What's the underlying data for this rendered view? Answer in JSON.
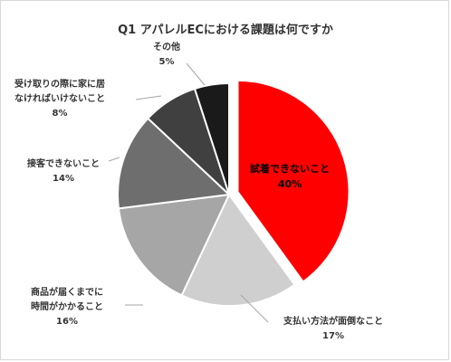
{
  "chart_data": {
    "type": "pie",
    "title": "Q1 アパレルECにおける課題は何ですか",
    "slices": [
      {
        "label_lines": [
          "試着できないこと"
        ],
        "value": 40,
        "value_label": "40%",
        "color": "#ff0000",
        "exploded": true
      },
      {
        "label_lines": [
          "支払い方法が面倒なこと"
        ],
        "value": 17,
        "value_label": "17%",
        "color": "#d0cfcf"
      },
      {
        "label_lines": [
          "商品が届くまでに",
          "時間がかかること"
        ],
        "value": 16,
        "value_label": "16%",
        "color": "#a6a6a6"
      },
      {
        "label_lines": [
          "接客できないこと"
        ],
        "value": 14,
        "value_label": "14%",
        "color": "#6e6e6e"
      },
      {
        "label_lines": [
          "受け取りの際に家に居",
          "なければいけないこと"
        ],
        "value": 8,
        "value_label": "8%",
        "color": "#404040"
      },
      {
        "label_lines": [
          "その他"
        ],
        "value": 5,
        "value_label": "5%",
        "color": "#1a1a1a"
      }
    ]
  }
}
